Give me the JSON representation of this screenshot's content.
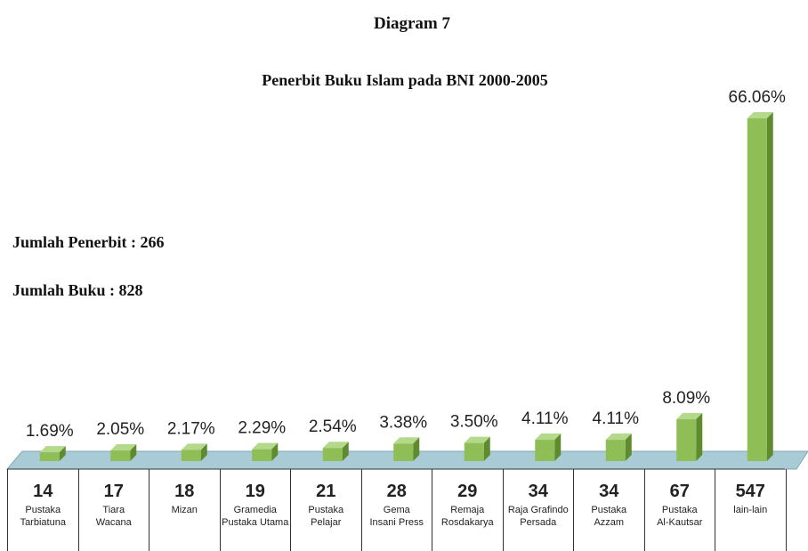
{
  "chart_data": {
    "type": "bar",
    "title": "Diagram 7",
    "subtitle": "Penerbit Buku Islam pada BNI 2000-2005",
    "annotations": [
      "Jumlah Penerbit : 266",
      "Jumlah Buku : 828"
    ],
    "categories": [
      "Pustaka\nTarbiatuna",
      "Tiara\nWacana",
      "Mizan",
      "Gramedia\nPustaka Utama",
      "Pustaka\nPelajar",
      "Gema\nInsani Press",
      "Remaja\nRosdakarya",
      "Raja Grafindo\nPersada",
      "Pustaka\nAzzam",
      "Pustaka\nAl-Kautsar",
      "lain-lain"
    ],
    "counts": [
      14,
      17,
      18,
      19,
      21,
      28,
      29,
      34,
      34,
      67,
      547
    ],
    "values": [
      1.69,
      2.05,
      2.17,
      2.29,
      2.54,
      3.38,
      3.5,
      4.11,
      4.11,
      8.09,
      66.06
    ],
    "value_labels": [
      "1.69%",
      "2.05%",
      "2.17%",
      "2.29%",
      "2.54%",
      "3.38%",
      "3.50%",
      "4.11%",
      "4.11%",
      "8.09%",
      "66.06%"
    ],
    "color": "#8fbd56"
  }
}
